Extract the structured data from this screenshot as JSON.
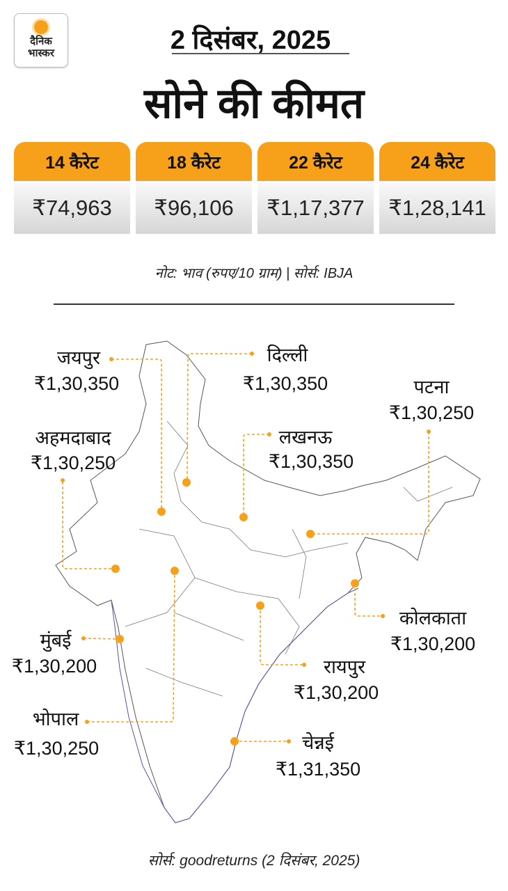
{
  "logo": {
    "line1": "दैनिक",
    "line2": "भास्कर"
  },
  "date": "2 दिसंबर, 2025",
  "title": "सोने की कीमत",
  "carats": [
    {
      "label": "14 कैरेट",
      "price": "₹74,963"
    },
    {
      "label": "18 कैरेट",
      "price": "₹96,106"
    },
    {
      "label": "22 कैरेट",
      "price": "₹1,17,377"
    },
    {
      "label": "24 कैरेट",
      "price": "₹1,28,141"
    }
  ],
  "note": "नोट: भाव (रुपए/10 ग्राम) | सोर्स: IBJA",
  "cities": {
    "jaipur": {
      "name": "जयपुर",
      "price": "₹1,30,350"
    },
    "delhi": {
      "name": "दिल्ली",
      "price": "₹1,30,350"
    },
    "patna": {
      "name": "पटना",
      "price": "₹1,30,250"
    },
    "ahmedabad": {
      "name": "अहमदाबाद",
      "price": "₹1,30,250"
    },
    "lucknow": {
      "name": "लखनऊ",
      "price": "₹1,30,350"
    },
    "kolkata": {
      "name": "कोलकाता",
      "price": "₹1,30,200"
    },
    "raipur": {
      "name": "रायपुर",
      "price": "₹1,30,200"
    },
    "mumbai": {
      "name": "मुंबई",
      "price": "₹1,30,200"
    },
    "bhopal": {
      "name": "भोपाल",
      "price": "₹1,30,250"
    },
    "chennai": {
      "name": "चेन्नई",
      "price": "₹1,31,350"
    }
  },
  "source": "सोर्स: goodreturns (2 दिसंबर, 2025)",
  "colors": {
    "accent": "#f7a11a",
    "map_border": "#555555",
    "coast": "#5a4fb0"
  }
}
